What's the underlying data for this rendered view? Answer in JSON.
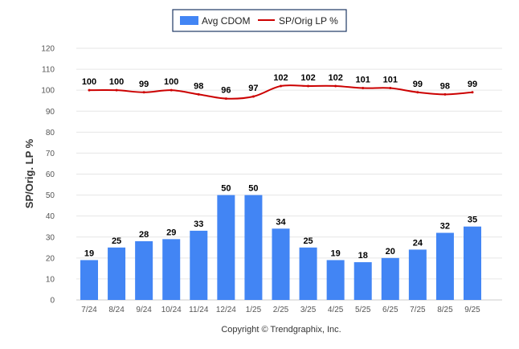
{
  "chart_data": {
    "type": "bar+line",
    "categories": [
      "7/24",
      "8/24",
      "9/24",
      "10/24",
      "11/24",
      "12/24",
      "1/25",
      "2/25",
      "3/25",
      "4/25",
      "5/25",
      "6/25",
      "7/25",
      "8/25",
      "9/25"
    ],
    "series": [
      {
        "name": "Avg CDOM",
        "type": "bar",
        "color": "#4285f4",
        "values": [
          19,
          25,
          28,
          29,
          33,
          50,
          50,
          34,
          25,
          19,
          18,
          20,
          24,
          32,
          35
        ]
      },
      {
        "name": "SP/Orig LP %",
        "type": "line",
        "color": "#cc0000",
        "values": [
          100,
          100,
          99,
          100,
          98,
          96,
          97,
          102,
          102,
          102,
          101,
          101,
          99,
          98,
          99
        ]
      }
    ],
    "ylabel": "SP/Orig. LP %",
    "ylim": [
      0,
      120
    ],
    "yticks": [
      0,
      10,
      20,
      30,
      40,
      50,
      60,
      70,
      80,
      90,
      100,
      110,
      120
    ],
    "grid": true,
    "legend": "top-center"
  },
  "footer": {
    "copyright": "Copyright © Trendgraphix, Inc."
  }
}
